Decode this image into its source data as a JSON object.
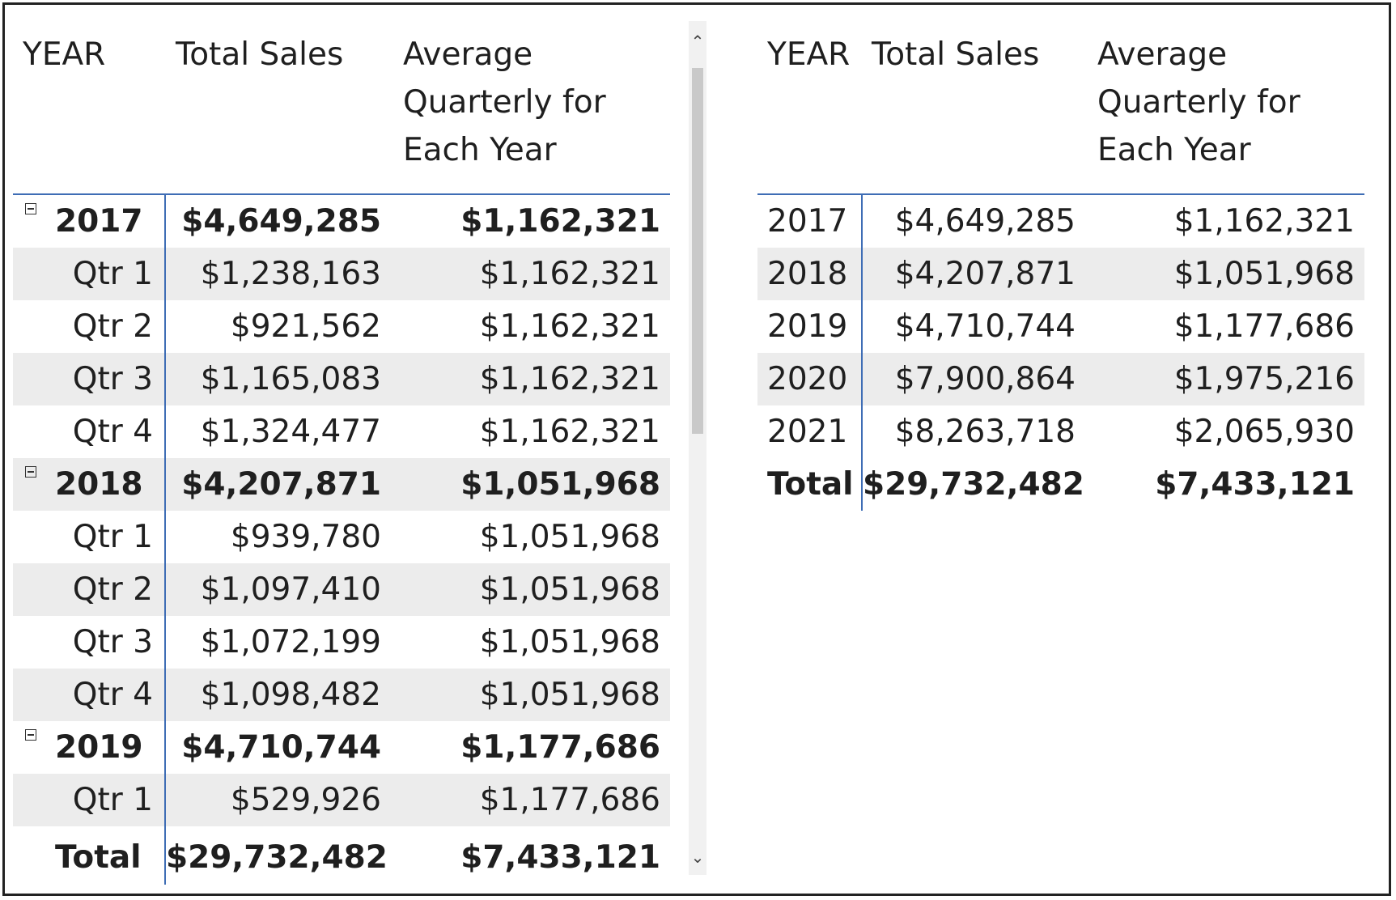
{
  "left_matrix": {
    "headers": [
      "YEAR",
      "Total Sales",
      "Average Quarterly for Each Year"
    ],
    "rows": [
      {
        "label": "2017",
        "sales": "$4,649,285",
        "avg": "$1,162,321"
      },
      {
        "label": "Qtr 1",
        "sales": "$1,238,163",
        "avg": "$1,162,321"
      },
      {
        "label": "Qtr 2",
        "sales": "$921,562",
        "avg": "$1,162,321"
      },
      {
        "label": "Qtr 3",
        "sales": "$1,165,083",
        "avg": "$1,162,321"
      },
      {
        "label": "Qtr 4",
        "sales": "$1,324,477",
        "avg": "$1,162,321"
      },
      {
        "label": "2018",
        "sales": "$4,207,871",
        "avg": "$1,051,968"
      },
      {
        "label": "Qtr 1",
        "sales": "$939,780",
        "avg": "$1,051,968"
      },
      {
        "label": "Qtr 2",
        "sales": "$1,097,410",
        "avg": "$1,051,968"
      },
      {
        "label": "Qtr 3",
        "sales": "$1,072,199",
        "avg": "$1,051,968"
      },
      {
        "label": "Qtr 4",
        "sales": "$1,098,482",
        "avg": "$1,051,968"
      },
      {
        "label": "2019",
        "sales": "$4,710,744",
        "avg": "$1,177,686"
      },
      {
        "label": "Qtr 1",
        "sales": "$529,926",
        "avg": "$1,177,686"
      }
    ],
    "total": {
      "label": "Total",
      "sales": "$29,732,482",
      "avg": "$7,433,121"
    }
  },
  "scrollbar": {
    "up_icon": "chevron-up-icon",
    "down_icon": "chevron-down-icon"
  },
  "right_table": {
    "headers": [
      "YEAR",
      "Total Sales",
      "Average Quarterly for Each Year"
    ],
    "rows": [
      {
        "label": "2017",
        "sales": "$4,649,285",
        "avg": "$1,162,321"
      },
      {
        "label": "2018",
        "sales": "$4,207,871",
        "avg": "$1,051,968"
      },
      {
        "label": "2019",
        "sales": "$4,710,744",
        "avg": "$1,177,686"
      },
      {
        "label": "2020",
        "sales": "$7,900,864",
        "avg": "$1,975,216"
      },
      {
        "label": "2021",
        "sales": "$8,263,718",
        "avg": "$2,065,930"
      }
    ],
    "total": {
      "label": "Total",
      "sales": "$29,732,482",
      "avg": "$7,433,121"
    }
  },
  "colors": {
    "divider": "#3e6db5",
    "row_shade": "#ececec"
  }
}
